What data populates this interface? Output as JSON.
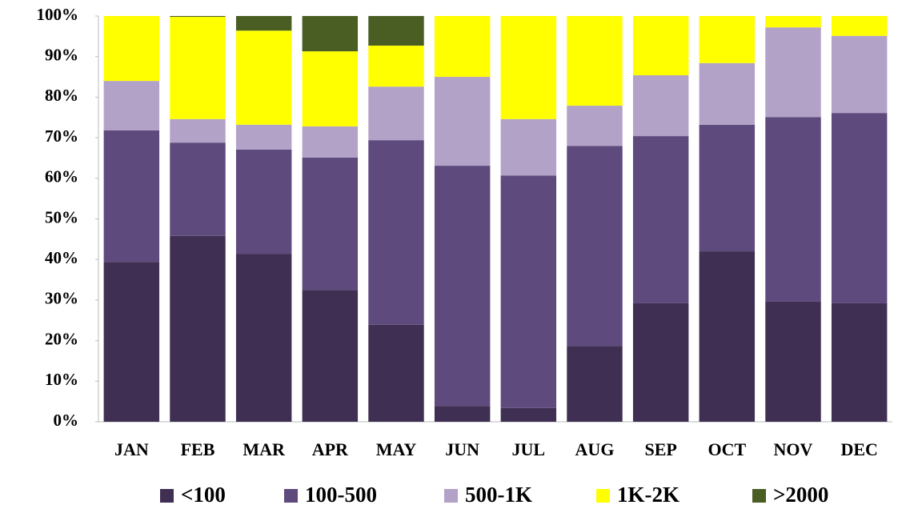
{
  "chart_data": {
    "type": "stacked_bar_percent",
    "categories": [
      "JAN",
      "FEB",
      "MAR",
      "APR",
      "MAY",
      "JUN",
      "JUL",
      "AUG",
      "SEP",
      "OCT",
      "NOV",
      "DEC"
    ],
    "series": [
      {
        "name": "<100",
        "color": "#3f2f52",
        "values": [
          39.4,
          45.8,
          41.4,
          32.5,
          23.9,
          3.9,
          3.4,
          18.7,
          29.2,
          42,
          29.6,
          29.2
        ]
      },
      {
        "name": "100-500",
        "color": "#5e4a7d",
        "values": [
          32.4,
          23,
          25.7,
          32.6,
          45.5,
          59.2,
          57.3,
          49.3,
          41.2,
          31.2,
          45.5,
          46.9
        ]
      },
      {
        "name": "500-1K",
        "color": "#b2a2c8",
        "values": [
          12.2,
          5.8,
          6.1,
          7.7,
          13.2,
          21.9,
          13.9,
          9.9,
          15,
          15.2,
          22.1,
          19
        ]
      },
      {
        "name": "1K-2K",
        "color": "#ffff00",
        "values": [
          16,
          25.2,
          23.2,
          18.5,
          10.1,
          15,
          25.4,
          22.1,
          14.6,
          11.6,
          2.8,
          4.9
        ]
      },
      {
        "name": ">2000",
        "color": "#4a5e23",
        "values": [
          0,
          0.2,
          3.6,
          8.7,
          7.3,
          0,
          0,
          0,
          0,
          0,
          0,
          0
        ]
      }
    ],
    "ylim": [
      0,
      100
    ],
    "yticks": [
      {
        "value": 0,
        "label": "0%"
      },
      {
        "value": 10,
        "label": "10%"
      },
      {
        "value": 20,
        "label": "20%"
      },
      {
        "value": 30,
        "label": "30%"
      },
      {
        "value": 40,
        "label": "40%"
      },
      {
        "value": 50,
        "label": "50%"
      },
      {
        "value": 60,
        "label": "60%"
      },
      {
        "value": 70,
        "label": "70%"
      },
      {
        "value": 80,
        "label": "80%"
      },
      {
        "value": 90,
        "label": "90%"
      },
      {
        "value": 100,
        "label": "100%"
      }
    ],
    "legend": "bottom",
    "grid": false
  }
}
